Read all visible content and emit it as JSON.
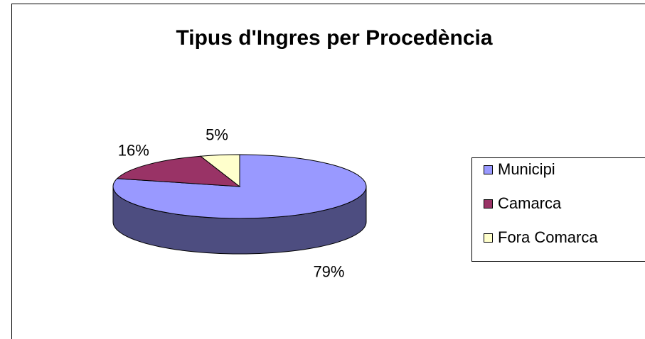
{
  "chart_data": {
    "type": "pie",
    "title": "Tipus d'Ingres per Procedència",
    "categories": [
      "Municipi",
      "Camarca",
      "Fora Comarca"
    ],
    "values": [
      79,
      16,
      5
    ],
    "value_labels": [
      "79%",
      "16%",
      "5%"
    ],
    "colors": [
      "#9999ff",
      "#993366",
      "#ffffcc"
    ],
    "legend": "right"
  }
}
